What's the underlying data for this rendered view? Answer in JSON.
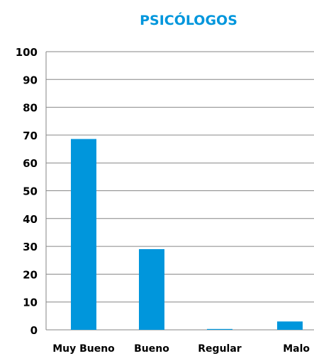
{
  "chart_data": {
    "type": "bar",
    "title": "PSICÓLOGOS",
    "categories": [
      "Muy Bueno",
      "Bueno",
      "Regular",
      "Malo"
    ],
    "values": [
      68.6,
      29,
      0.3,
      3
    ],
    "ylim": [
      0,
      100
    ],
    "yticks": [
      "0",
      "10",
      "20",
      "30",
      "40",
      "50",
      "60",
      "70",
      "80",
      "90",
      "100"
    ],
    "grid": true,
    "legend": false,
    "colors": {
      "bar": "#0096dc",
      "grid": "#868686",
      "text": "#000000",
      "title": "#0096dc"
    }
  }
}
